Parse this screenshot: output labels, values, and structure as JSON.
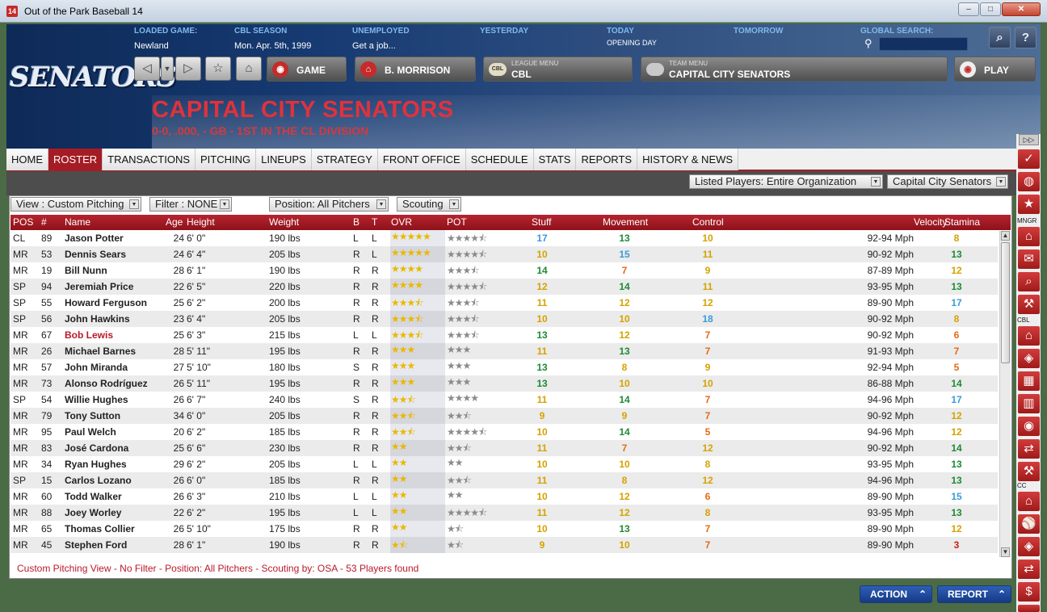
{
  "window": {
    "title": "Out of the Park Baseball 14",
    "icon": "14"
  },
  "header": {
    "loaded_game": {
      "label": "LOADED GAME:",
      "value": "Newland"
    },
    "cbl_season": {
      "label": "CBL SEASON",
      "value": "Mon. Apr. 5th, 1999"
    },
    "unemployed": {
      "label": "UNEMPLOYED",
      "value": "Get a job..."
    },
    "yesterday": {
      "label": "YESTERDAY",
      "value": ""
    },
    "today": {
      "label": "TODAY",
      "value": "OPENING DAY"
    },
    "tomorrow": {
      "label": "TOMORROW",
      "value": ""
    },
    "global_search": {
      "label": "GLOBAL SEARCH:",
      "value": ""
    },
    "logo": "SENATORS",
    "game_button": "GAME",
    "manager_button": "B. MORRISON",
    "league_menu": {
      "sub": "LEAGUE MENU",
      "main": "CBL",
      "badge": "CBL"
    },
    "team_menu": {
      "sub": "TEAM MENU",
      "main": "CAPITAL CITY SENATORS"
    },
    "play_button": "PLAY",
    "team_name": "CAPITAL CITY SENATORS",
    "team_record": "0-0, .000, - GB - 1ST IN THE CL DIVISION"
  },
  "tabs": [
    "HOME",
    "ROSTER",
    "TRANSACTIONS",
    "PITCHING",
    "LINEUPS",
    "STRATEGY",
    "FRONT OFFICE",
    "SCHEDULE",
    "STATS",
    "REPORTS",
    "HISTORY & NEWS"
  ],
  "active_tab": "ROSTER",
  "filters": {
    "listed_players": "Listed Players: Entire Organization",
    "team": "Capital City Senators",
    "view": "View : Custom Pitching",
    "filter": "Filter : NONE",
    "position": "Position: All Pitchers",
    "scouting": "Scouting"
  },
  "columns": [
    "POS",
    "#",
    "Name",
    "Age",
    "Height",
    "Weight",
    "B",
    "T",
    "OVR",
    "POT",
    "Stuff",
    "Movement",
    "Control",
    "Velocity",
    "Stamina"
  ],
  "players": [
    {
      "pos": "CL",
      "num": "89",
      "name": "Jason Potter",
      "age": "24",
      "height": "6' 0\"",
      "weight": "190 lbs",
      "b": "L",
      "t": "L",
      "ovr": 5,
      "pot": 4.5,
      "stuff": "17",
      "movement": "13",
      "control": "10",
      "velocity": "92-94 Mph",
      "stamina": "8"
    },
    {
      "pos": "MR",
      "num": "53",
      "name": "Dennis Sears",
      "age": "24",
      "height": "6' 4\"",
      "weight": "205 lbs",
      "b": "R",
      "t": "L",
      "ovr": 5,
      "pot": 4.5,
      "stuff": "10",
      "movement": "15",
      "control": "11",
      "velocity": "90-92 Mph",
      "stamina": "13"
    },
    {
      "pos": "MR",
      "num": "19",
      "name": "Bill Nunn",
      "age": "28",
      "height": "6' 1\"",
      "weight": "190 lbs",
      "b": "R",
      "t": "R",
      "ovr": 4,
      "pot": 3.5,
      "stuff": "14",
      "movement": "7",
      "control": "9",
      "velocity": "87-89 Mph",
      "stamina": "12"
    },
    {
      "pos": "SP",
      "num": "94",
      "name": "Jeremiah Price",
      "age": "22",
      "height": "6' 5\"",
      "weight": "220 lbs",
      "b": "R",
      "t": "R",
      "ovr": 4,
      "pot": 4.5,
      "stuff": "12",
      "movement": "14",
      "control": "11",
      "velocity": "93-95 Mph",
      "stamina": "13"
    },
    {
      "pos": "SP",
      "num": "55",
      "name": "Howard Ferguson",
      "age": "25",
      "height": "6' 2\"",
      "weight": "200 lbs",
      "b": "R",
      "t": "R",
      "ovr": 3.5,
      "pot": 3.5,
      "stuff": "11",
      "movement": "12",
      "control": "12",
      "velocity": "89-90 Mph",
      "stamina": "17"
    },
    {
      "pos": "SP",
      "num": "56",
      "name": "John Hawkins",
      "age": "23",
      "height": "6' 4\"",
      "weight": "205 lbs",
      "b": "R",
      "t": "R",
      "ovr": 3.5,
      "pot": 3.5,
      "stuff": "10",
      "movement": "10",
      "control": "18",
      "velocity": "90-92 Mph",
      "stamina": "8"
    },
    {
      "pos": "MR",
      "num": "67",
      "name": "Bob Lewis",
      "age": "25",
      "height": "6' 3\"",
      "weight": "215 lbs",
      "b": "L",
      "t": "L",
      "ovr": 3.5,
      "pot": 3.5,
      "stuff": "13",
      "movement": "12",
      "control": "7",
      "velocity": "90-92 Mph",
      "stamina": "6",
      "highlight": true
    },
    {
      "pos": "MR",
      "num": "26",
      "name": "Michael Barnes",
      "age": "28",
      "height": "5' 11\"",
      "weight": "195 lbs",
      "b": "R",
      "t": "R",
      "ovr": 3,
      "pot": 3,
      "stuff": "11",
      "movement": "13",
      "control": "7",
      "velocity": "91-93 Mph",
      "stamina": "7"
    },
    {
      "pos": "MR",
      "num": "57",
      "name": "John Miranda",
      "age": "27",
      "height": "5' 10\"",
      "weight": "180 lbs",
      "b": "S",
      "t": "R",
      "ovr": 3,
      "pot": 3,
      "stuff": "13",
      "movement": "8",
      "control": "9",
      "velocity": "92-94 Mph",
      "stamina": "5"
    },
    {
      "pos": "MR",
      "num": "73",
      "name": "Alonso Rodríguez",
      "age": "26",
      "height": "5' 11\"",
      "weight": "195 lbs",
      "b": "R",
      "t": "R",
      "ovr": 3,
      "pot": 3,
      "stuff": "13",
      "movement": "10",
      "control": "10",
      "velocity": "86-88 Mph",
      "stamina": "14"
    },
    {
      "pos": "SP",
      "num": "54",
      "name": "Willie Hughes",
      "age": "26",
      "height": "6' 7\"",
      "weight": "240 lbs",
      "b": "S",
      "t": "R",
      "ovr": 2.5,
      "pot": 4,
      "stuff": "11",
      "movement": "14",
      "control": "7",
      "velocity": "94-96 Mph",
      "stamina": "17"
    },
    {
      "pos": "MR",
      "num": "79",
      "name": "Tony Sutton",
      "age": "34",
      "height": "6' 0\"",
      "weight": "205 lbs",
      "b": "R",
      "t": "R",
      "ovr": 2.5,
      "pot": 2.5,
      "stuff": "9",
      "movement": "9",
      "control": "7",
      "velocity": "90-92 Mph",
      "stamina": "12"
    },
    {
      "pos": "MR",
      "num": "95",
      "name": "Paul Welch",
      "age": "20",
      "height": "6' 2\"",
      "weight": "185 lbs",
      "b": "R",
      "t": "R",
      "ovr": 2.5,
      "pot": 4.5,
      "stuff": "10",
      "movement": "14",
      "control": "5",
      "velocity": "94-96 Mph",
      "stamina": "12"
    },
    {
      "pos": "MR",
      "num": "83",
      "name": "José Cardona",
      "age": "25",
      "height": "6' 6\"",
      "weight": "230 lbs",
      "b": "R",
      "t": "R",
      "ovr": 2,
      "pot": 2.5,
      "stuff": "11",
      "movement": "7",
      "control": "12",
      "velocity": "90-92 Mph",
      "stamina": "14"
    },
    {
      "pos": "MR",
      "num": "34",
      "name": "Ryan Hughes",
      "age": "29",
      "height": "6' 2\"",
      "weight": "205 lbs",
      "b": "L",
      "t": "L",
      "ovr": 2,
      "pot": 2,
      "stuff": "10",
      "movement": "10",
      "control": "8",
      "velocity": "93-95 Mph",
      "stamina": "13"
    },
    {
      "pos": "SP",
      "num": "15",
      "name": "Carlos Lozano",
      "age": "26",
      "height": "6' 0\"",
      "weight": "185 lbs",
      "b": "R",
      "t": "R",
      "ovr": 2,
      "pot": 2.5,
      "stuff": "11",
      "movement": "8",
      "control": "12",
      "velocity": "94-96 Mph",
      "stamina": "13"
    },
    {
      "pos": "MR",
      "num": "60",
      "name": "Todd Walker",
      "age": "26",
      "height": "6' 3\"",
      "weight": "210 lbs",
      "b": "L",
      "t": "L",
      "ovr": 2,
      "pot": 2,
      "stuff": "10",
      "movement": "12",
      "control": "6",
      "velocity": "89-90 Mph",
      "stamina": "15"
    },
    {
      "pos": "MR",
      "num": "88",
      "name": "Joey Worley",
      "age": "22",
      "height": "6' 2\"",
      "weight": "195 lbs",
      "b": "L",
      "t": "L",
      "ovr": 2,
      "pot": 4.5,
      "stuff": "11",
      "movement": "12",
      "control": "8",
      "velocity": "93-95 Mph",
      "stamina": "13"
    },
    {
      "pos": "MR",
      "num": "65",
      "name": "Thomas Collier",
      "age": "26",
      "height": "5' 10\"",
      "weight": "175 lbs",
      "b": "R",
      "t": "R",
      "ovr": 2,
      "pot": 1.5,
      "stuff": "10",
      "movement": "13",
      "control": "7",
      "velocity": "89-90 Mph",
      "stamina": "12"
    },
    {
      "pos": "MR",
      "num": "45",
      "name": "Stephen Ford",
      "age": "28",
      "height": "6' 1\"",
      "weight": "190 lbs",
      "b": "R",
      "t": "R",
      "ovr": 1.5,
      "pot": 1.5,
      "stuff": "9",
      "movement": "10",
      "control": "7",
      "velocity": "89-90 Mph",
      "stamina": "3"
    }
  ],
  "status_text": "Custom Pitching View - No Filter - Position: All Pitchers - Scouting by: OSA - 53 Players found",
  "action_button": "ACTION",
  "report_button": "REPORT",
  "right_bar_labels": {
    "mngr": "MNGR",
    "cbl": "CBL",
    "cc": "CC"
  }
}
